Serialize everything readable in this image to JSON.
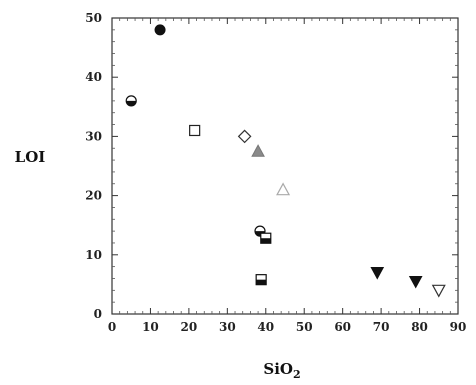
{
  "chart_data": {
    "type": "scatter",
    "xlabel": "SiO",
    "xlabel_subscript": "2",
    "ylabel": "LOI",
    "xlim": [
      0,
      90
    ],
    "ylim": [
      0,
      50
    ],
    "xticks": [
      "0",
      "10",
      "20",
      "30",
      "40",
      "50",
      "60",
      "70",
      "80",
      "90"
    ],
    "yticks": [
      "0",
      "10",
      "20",
      "30",
      "40",
      "50"
    ],
    "grid": false,
    "points": [
      {
        "x": 5,
        "y": 36,
        "marker": "circle-half"
      },
      {
        "x": 12.5,
        "y": 48,
        "marker": "circle-filled"
      },
      {
        "x": 21.5,
        "y": 31,
        "marker": "square-open"
      },
      {
        "x": 34.5,
        "y": 30,
        "marker": "diamond-open"
      },
      {
        "x": 38,
        "y": 27.5,
        "marker": "triangle-up-gray"
      },
      {
        "x": 44.5,
        "y": 21,
        "marker": "triangle-up-open"
      },
      {
        "x": 38.5,
        "y": 14,
        "marker": "circle-half"
      },
      {
        "x": 40,
        "y": 12.8,
        "marker": "square-half"
      },
      {
        "x": 38.8,
        "y": 5.8,
        "marker": "square-half"
      },
      {
        "x": 69,
        "y": 7,
        "marker": "triangle-down-filled"
      },
      {
        "x": 79,
        "y": 5.5,
        "marker": "triangle-down-filled"
      },
      {
        "x": 85,
        "y": 4,
        "marker": "triangle-down-open"
      }
    ]
  }
}
